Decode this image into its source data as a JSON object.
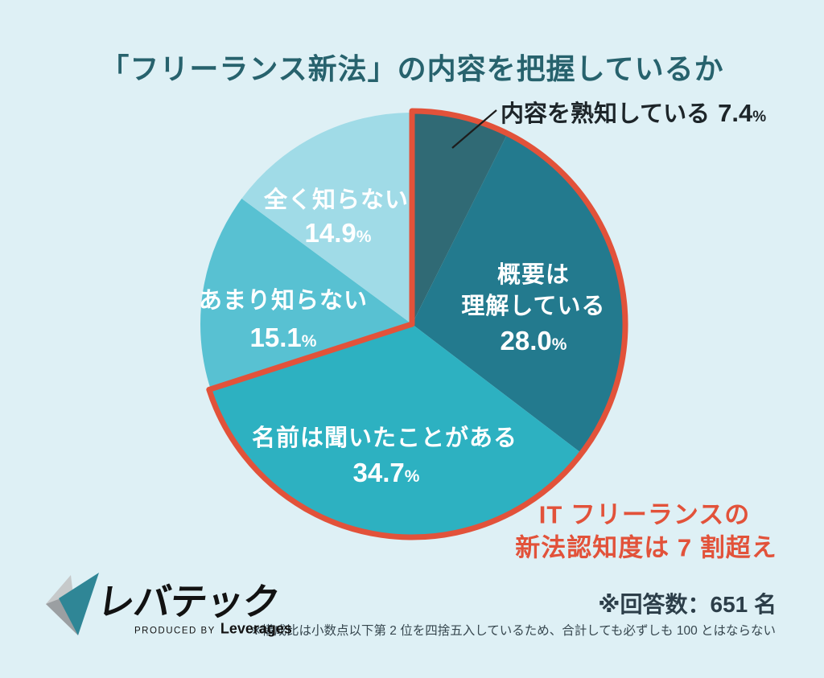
{
  "page": {
    "background": "#def0f5"
  },
  "title": "「フリーランス新法」の内容を把握しているか",
  "chart_data": {
    "type": "pie",
    "title": "「フリーランス新法」の内容を把握しているか",
    "units": "%",
    "start_angle_deg": 0,
    "direction": "clockwise",
    "percent_sign": "%",
    "slices": [
      {
        "label": "内容を熟知している",
        "value": 7.4,
        "display_value": "7.4",
        "color": "#306a75",
        "label_placement": "outside-callout",
        "text_color": "#1d2529"
      },
      {
        "label": "概要は理解している",
        "display_lines": [
          "概要は",
          "理解している"
        ],
        "value": 28.0,
        "display_value": "28.0",
        "color": "#237a8e",
        "label_placement": "inside",
        "text_color": "#ffffff"
      },
      {
        "label": "名前は聞いたことがある",
        "value": 34.7,
        "display_value": "34.7",
        "color": "#2db1c1",
        "label_placement": "inside",
        "text_color": "#ffffff"
      },
      {
        "label": "あまり知らない",
        "value": 15.1,
        "display_value": "15.1",
        "color": "#58c1d2",
        "label_placement": "inside",
        "text_color": "#ffffff"
      },
      {
        "label": "全く知らない",
        "value": 14.9,
        "display_value": "14.9",
        "color": "#a0dbe7",
        "label_placement": "inside",
        "text_color": "#ffffff"
      }
    ],
    "highlight": {
      "slice_count": 3,
      "total_percent": 70.1,
      "outline_color": "#e2523a",
      "annotation_line1": "IT フリーランスの",
      "annotation_line2": "新法認知度は 7 割超え"
    }
  },
  "footer": {
    "respondents": "※回答数：651 名",
    "note": "※構成比は小数点以下第 2 位を四捨五入しているため、合計しても必ずしも 100 とはならない"
  },
  "logo": {
    "brand": "レバテック",
    "produced_by": "PRODUCED BY",
    "company": "Leverages",
    "mark_teal": "#2f8696",
    "mark_gray": "#9b9fa2",
    "mark_gray_light": "#c6c9ca"
  },
  "colors": {
    "background": "#def0f5",
    "title_text": "#27626d",
    "accent_red": "#e2523a",
    "dark_text": "#2c3e49",
    "leader_line": "#1d1d1d"
  }
}
